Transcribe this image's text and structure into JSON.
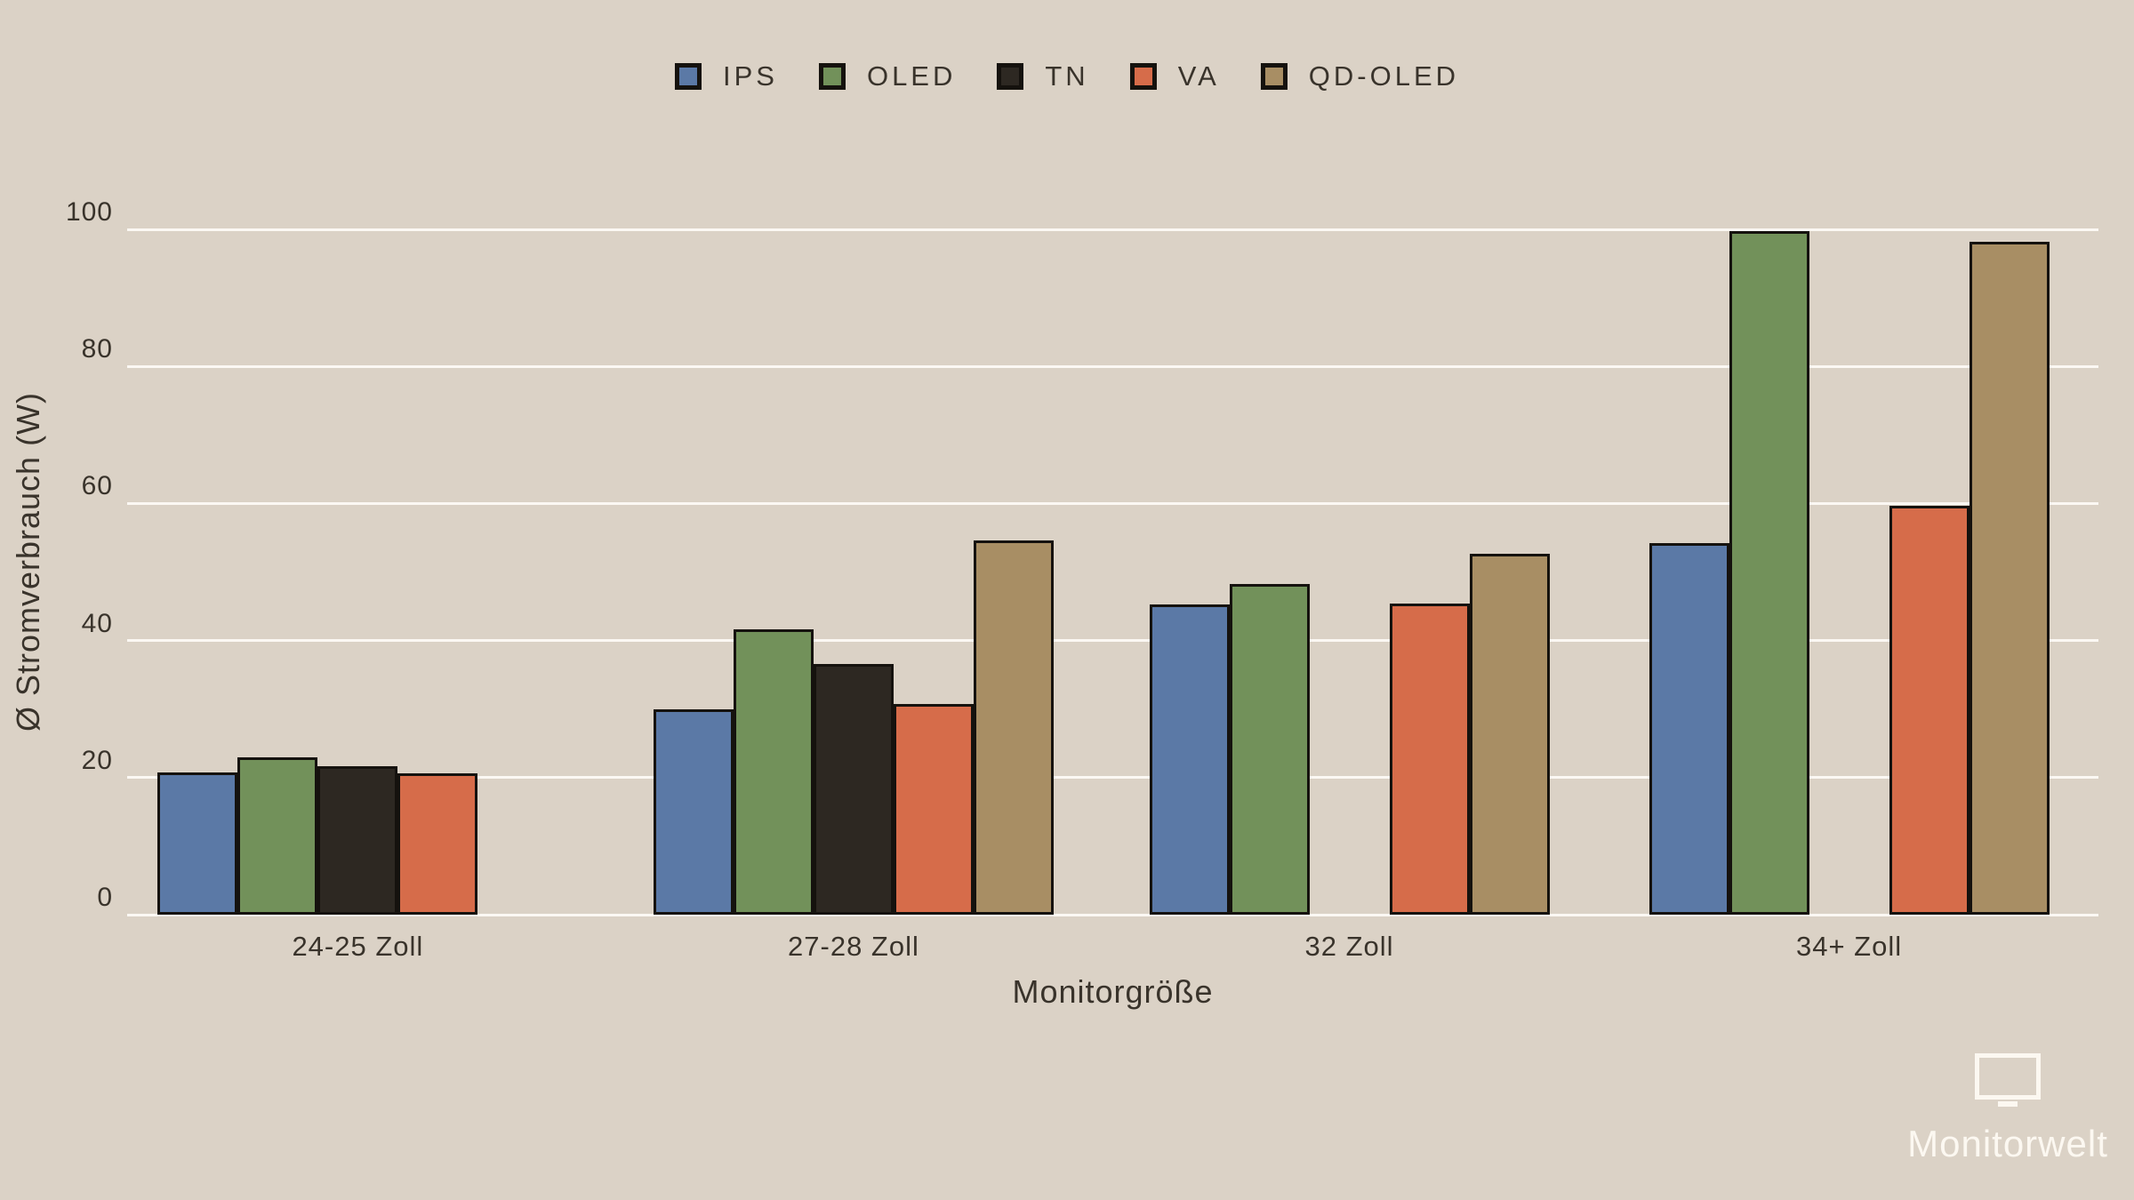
{
  "chart_data": {
    "type": "bar",
    "title": "",
    "categories": [
      "24-25 Zoll",
      "27-28 Zoll",
      "32 Zoll",
      "34+ Zoll"
    ],
    "series": [
      {
        "name": "IPS",
        "color": "#5b79a6",
        "values": [
          20.7,
          30.0,
          45.3,
          54.2
        ]
      },
      {
        "name": "OLED",
        "color": "#72915a",
        "values": [
          22.9,
          41.7,
          48.3,
          99.8
        ]
      },
      {
        "name": "TN",
        "color": "#2d2822",
        "values": [
          21.6,
          36.6,
          null,
          null
        ]
      },
      {
        "name": "VA",
        "color": "#d66c4a",
        "values": [
          20.6,
          30.7,
          45.4,
          59.7
        ]
      },
      {
        "name": "QD-OLED",
        "color": "#a88e64",
        "values": [
          null,
          54.6,
          52.6,
          98.2
        ]
      }
    ],
    "xlabel": "Monitorgröße",
    "ylabel": "Ø Stromverbrauch (W)",
    "ylim": [
      0,
      100
    ],
    "yticks": [
      0,
      20,
      40,
      60,
      80,
      100
    ],
    "grid": "horizontal white gridlines",
    "legend_position": "top center"
  },
  "branding": {
    "name": "Monitorwelt",
    "icon": "monitor-icon"
  },
  "colors": {
    "background": "#dbd2c6",
    "gridline": "#fbf8f3",
    "text": "#39332b",
    "bar_border": "#15120e",
    "brand": "#fcf8f1"
  }
}
